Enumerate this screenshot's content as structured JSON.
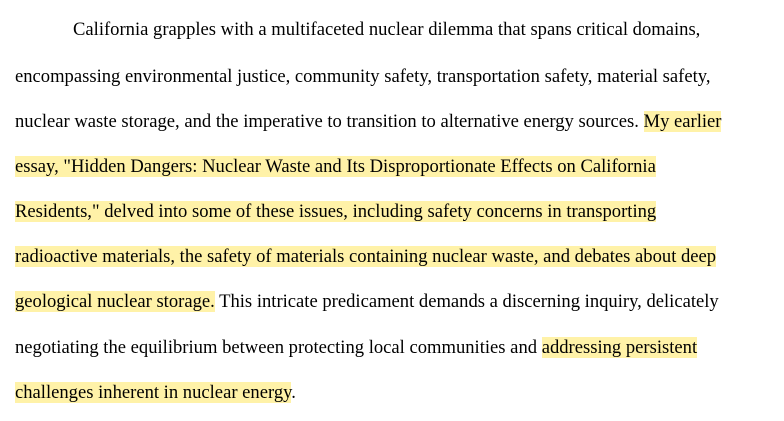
{
  "document": {
    "highlight_color": "#fff2a8",
    "lines": [
      {
        "segments": [
          {
            "text": "California grapples with a multifaceted nuclear dilemma that spans critical domains,",
            "highlight": false
          }
        ]
      },
      {
        "segments": [
          {
            "text": "encompassing environmental justice, community safety, transportation safety, material safety,",
            "highlight": false
          }
        ]
      },
      {
        "segments": [
          {
            "text": "nuclear waste storage, and the imperative to transition to alternative energy sources. ",
            "highlight": false
          },
          {
            "text": "My earlier",
            "highlight": true
          }
        ]
      },
      {
        "segments": [
          {
            "text": "essay, \"Hidden Dangers: Nuclear Waste and Its Disproportionate Effects on California",
            "highlight": true
          }
        ]
      },
      {
        "segments": [
          {
            "text": "Residents,\" delved into some of these issues, including safety concerns in transporting",
            "highlight": true
          }
        ]
      },
      {
        "segments": [
          {
            "text": "radioactive materials, the safety of materials containing nuclear waste, and debates about deep",
            "highlight": true
          }
        ]
      },
      {
        "segments": [
          {
            "text": "geological nuclear storage.",
            "highlight": true
          },
          {
            "text": " This intricate predicament demands a discerning inquiry, delicately",
            "highlight": false
          }
        ]
      },
      {
        "segments": [
          {
            "text": "negotiating the equilibrium between protecting local communities and ",
            "highlight": false
          },
          {
            "text": "addressing persistent",
            "highlight": true
          }
        ]
      },
      {
        "segments": [
          {
            "text": "challenges inherent in nuclear energy",
            "highlight": true
          },
          {
            "text": ".",
            "highlight": false
          }
        ]
      }
    ]
  }
}
